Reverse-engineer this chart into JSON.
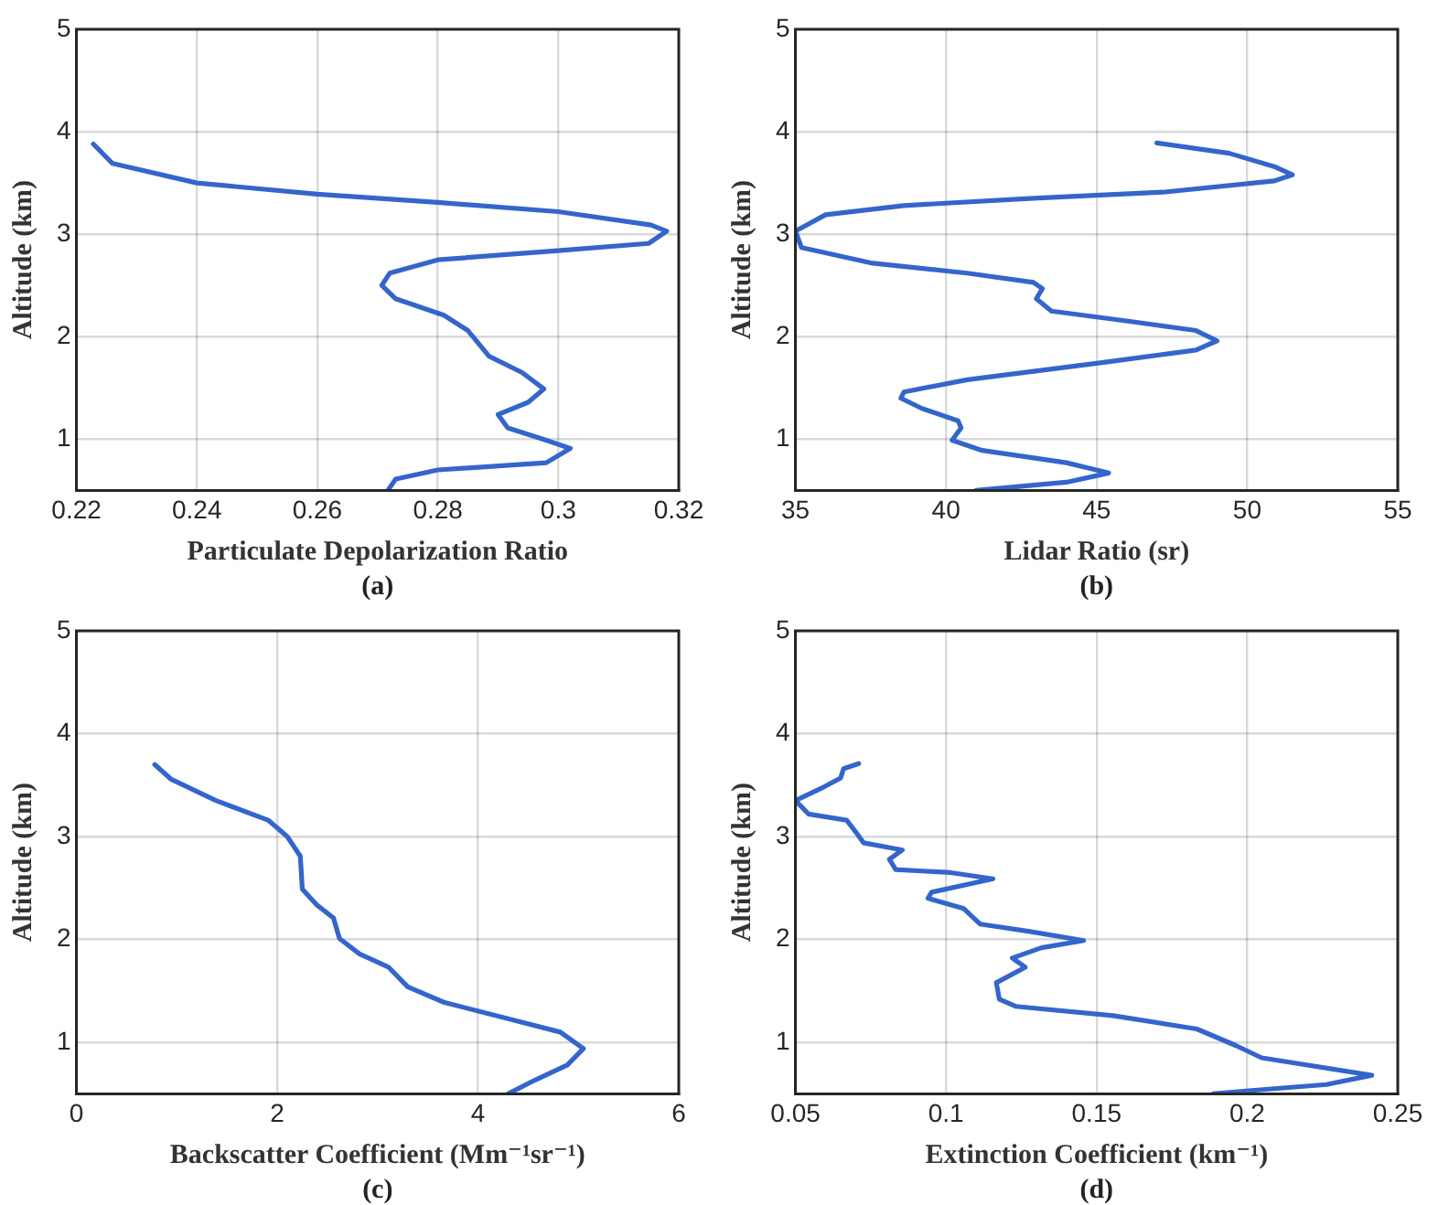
{
  "chart_data": [
    {
      "type": "line",
      "xlabel": "Particulate Depolarization Ratio",
      "ylabel": "Altitude (km)",
      "annotations": [
        "(a)"
      ],
      "grid": true,
      "marker": "none",
      "line_style": "solid",
      "xlim": [
        0.22,
        0.32
      ],
      "xticks": [
        0.22,
        0.24,
        0.26,
        0.28,
        0.3,
        0.32
      ],
      "ylim": [
        0.5,
        5
      ],
      "yticks": [
        1,
        2,
        3,
        4,
        5
      ],
      "series": [
        {
          "color": "#3465cc",
          "x": [
            0.2228,
            0.226,
            0.24,
            0.26,
            0.28,
            0.3,
            0.3154,
            0.318,
            0.315,
            0.3,
            0.28,
            0.272,
            0.2707,
            0.273,
            0.281,
            0.285,
            0.2885,
            0.294,
            0.2976,
            0.295,
            0.29,
            0.2916,
            0.298,
            0.302,
            0.298,
            0.28,
            0.273,
            0.2717
          ],
          "values": [
            3.88,
            3.69,
            3.5,
            3.39,
            3.31,
            3.22,
            3.09,
            3.03,
            2.91,
            2.84,
            2.75,
            2.62,
            2.5,
            2.37,
            2.21,
            2.06,
            1.81,
            1.65,
            1.49,
            1.36,
            1.24,
            1.11,
            0.99,
            0.91,
            0.77,
            0.7,
            0.61,
            0.5
          ]
        }
      ]
    },
    {
      "type": "line",
      "xlabel": "Lidar Ratio (sr)",
      "ylabel": "Altitude (km)",
      "annotations": [
        "(b)"
      ],
      "grid": true,
      "marker": "none",
      "line_style": "solid",
      "xlim": [
        35,
        55
      ],
      "xticks": [
        35,
        40,
        45,
        50,
        55
      ],
      "ylim": [
        0.5,
        5
      ],
      "yticks": [
        1,
        2,
        3,
        4,
        5
      ],
      "series": [
        {
          "color": "#3465cc",
          "x": [
            47.0,
            49.4,
            50.9,
            51.5,
            50.9,
            47.2,
            42.9,
            38.6,
            36.0,
            35.0,
            35.2,
            37.5,
            40.7,
            42.9,
            43.2,
            43.0,
            43.5,
            46.1,
            48.3,
            49.0,
            48.3,
            45.0,
            40.7,
            38.6,
            38.5,
            39.2,
            40.4,
            40.5,
            40.2,
            41.2,
            44.0,
            45.4,
            44.0,
            41.0
          ],
          "values": [
            3.89,
            3.79,
            3.66,
            3.58,
            3.52,
            3.41,
            3.35,
            3.28,
            3.19,
            3.03,
            2.87,
            2.72,
            2.62,
            2.53,
            2.47,
            2.37,
            2.25,
            2.15,
            2.06,
            1.96,
            1.87,
            1.74,
            1.58,
            1.46,
            1.4,
            1.3,
            1.18,
            1.11,
            0.99,
            0.89,
            0.77,
            0.67,
            0.58,
            0.5
          ]
        }
      ]
    },
    {
      "type": "line",
      "xlabel": "Backscatter Coefficient (Mm⁻¹sr⁻¹)",
      "ylabel": "Altitude (km)",
      "annotations": [
        "(c)"
      ],
      "grid": true,
      "marker": "none",
      "line_style": "solid",
      "xlim": [
        0,
        6
      ],
      "xticks": [
        0,
        2,
        4,
        6
      ],
      "ylim": [
        0.5,
        5
      ],
      "yticks": [
        1,
        2,
        3,
        4,
        5
      ],
      "series": [
        {
          "color": "#3465cc",
          "x": [
            0.78,
            0.94,
            1.39,
            1.91,
            2.1,
            2.23,
            2.25,
            2.39,
            2.56,
            2.62,
            2.82,
            3.11,
            3.3,
            3.66,
            4.3,
            4.82,
            5.05,
            4.89,
            4.56,
            4.3
          ],
          "values": [
            3.7,
            3.56,
            3.35,
            3.16,
            3.0,
            2.81,
            2.49,
            2.34,
            2.21,
            2.01,
            1.86,
            1.73,
            1.54,
            1.39,
            1.23,
            1.1,
            0.94,
            0.78,
            0.63,
            0.5
          ]
        }
      ]
    },
    {
      "type": "line",
      "xlabel": "Extinction Coefficient (km⁻¹)",
      "ylabel": "Altitude (km)",
      "annotations": [
        "(d)"
      ],
      "grid": true,
      "marker": "none",
      "line_style": "solid",
      "xlim": [
        0.05,
        0.25
      ],
      "xticks": [
        0.05,
        0.1,
        0.15,
        0.2,
        0.25
      ],
      "ylim": [
        0.5,
        5
      ],
      "yticks": [
        1,
        2,
        3,
        4,
        5
      ],
      "series": [
        {
          "color": "#3465cc",
          "x": [
            0.071,
            0.066,
            0.065,
            0.0586,
            0.05,
            0.0543,
            0.067,
            0.0704,
            0.0726,
            0.0855,
            0.0812,
            0.0833,
            0.1016,
            0.1156,
            0.0952,
            0.094,
            0.1059,
            0.1113,
            0.1274,
            0.1457,
            0.1317,
            0.122,
            0.1263,
            0.1167,
            0.1177,
            0.1231,
            0.1554,
            0.1833,
            0.1962,
            0.2048,
            0.2414,
            0.2263,
            0.2005,
            0.1887
          ],
          "values": [
            3.71,
            3.66,
            3.57,
            3.47,
            3.35,
            3.22,
            3.16,
            3.03,
            2.94,
            2.87,
            2.78,
            2.68,
            2.65,
            2.59,
            2.46,
            2.4,
            2.3,
            2.15,
            2.08,
            1.99,
            1.92,
            1.82,
            1.73,
            1.58,
            1.42,
            1.35,
            1.26,
            1.13,
            0.97,
            0.85,
            0.68,
            0.59,
            0.53,
            0.5
          ]
        }
      ]
    }
  ]
}
